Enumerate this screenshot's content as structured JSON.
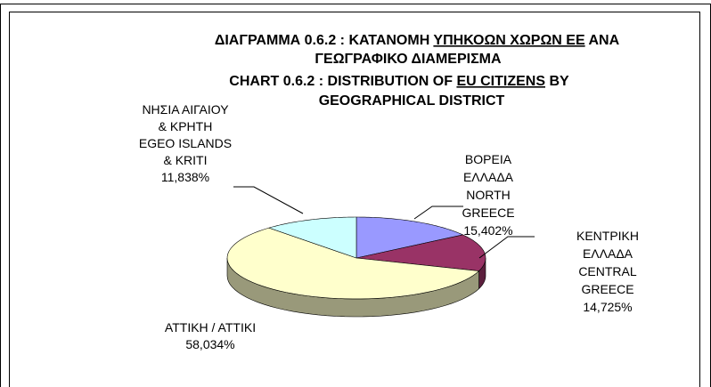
{
  "chart_data": {
    "type": "pie",
    "title_lines": [
      [
        "ΔΙΑΓΡΑΜΜΑ 0.6.2 : ΚΑΤΑΝΟΜΗ",
        "ΥΠΗΚΟΩΝ ΧΩΡΩΝ ΕΕ",
        "ΑΝΑ"
      ],
      [
        "ΓΕΩΓΡΑΦΙΚΟ ΔΙΑΜΕΡΙΣΜΑ"
      ]
    ],
    "subtitle_lines": [
      [
        "CHART 0.6.2 : DISTRIBUTION OF",
        "EU CITIZENS",
        "BY"
      ],
      [
        "GEOGRAPHICAL DISTRICT"
      ]
    ],
    "categories": [
      [
        "ΒΟΡΕΙΑ",
        "ΕΛΛΑΔΑ",
        "NORTH",
        "GREECE"
      ],
      [
        "ΚΕΝΤΡΙΚΗ",
        "ΕΛΛΑΔΑ",
        "CENTRAL",
        "GREECE"
      ],
      [
        "ΑΤΤΙΚΗ / ΑΤΤΙΚΙ"
      ],
      [
        "ΝΗΣΙΑ ΑΙΓΑΙΟΥ",
        "& ΚΡΗΤΗ",
        "EGEO ISLANDS",
        "& KRITI"
      ]
    ],
    "values": [
      15.402,
      14.725,
      58.034,
      11.838
    ],
    "value_labels": [
      "15,402%",
      "14,725%",
      "58,034%",
      "11,838%"
    ],
    "colors": [
      "#9999ff",
      "#993366",
      "#ffffcc",
      "#ccffff"
    ]
  }
}
